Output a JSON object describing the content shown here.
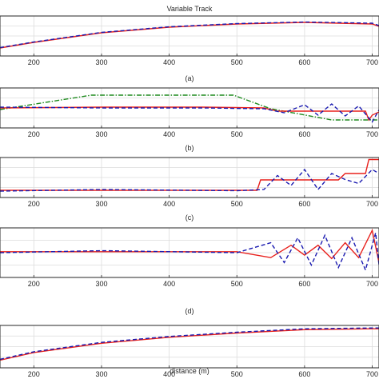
{
  "figure": {
    "title": "Variable Track",
    "xlabel": "distance (m)",
    "colors": {
      "red": "#e8201c",
      "blue": "#1a1ab0",
      "green": "#1f8a1f",
      "grid": "#dcdcdc",
      "axes": "#262626",
      "panel_bg": "#eeeeee"
    }
  },
  "chart_data": [
    {
      "type": "line",
      "caption": "(a)",
      "xlim": [
        150,
        710
      ],
      "ylim": [
        0,
        1
      ],
      "xticks": [
        200,
        300,
        400,
        500,
        600,
        700
      ],
      "xticklabels": [
        "200",
        "300",
        "400",
        "500",
        "600",
        "700"
      ],
      "grid": true,
      "series": [
        {
          "color": "#e8201c",
          "style": "solid",
          "x": [
            150,
            200,
            300,
            400,
            500,
            600,
            700,
            710
          ],
          "y": [
            0.2,
            0.34,
            0.58,
            0.72,
            0.8,
            0.84,
            0.8,
            0.74
          ]
        },
        {
          "color": "#1a1ab0",
          "style": "dashed",
          "x": [
            150,
            200,
            300,
            400,
            500,
            600,
            700,
            710
          ],
          "y": [
            0.21,
            0.35,
            0.59,
            0.73,
            0.81,
            0.85,
            0.82,
            0.76
          ]
        }
      ]
    },
    {
      "type": "line",
      "caption": "(b)",
      "xlim": [
        150,
        710
      ],
      "ylim": [
        0,
        1
      ],
      "xticks": [
        200,
        300,
        400,
        500,
        600,
        700
      ],
      "xticklabels": [
        "200",
        "300",
        "400",
        "500",
        "600",
        "700"
      ],
      "grid": true,
      "series": [
        {
          "color": "#1f8a1f",
          "style": "dashdot",
          "x": [
            150,
            285,
            495,
            550,
            640,
            710
          ],
          "y": [
            0.46,
            0.82,
            0.82,
            0.48,
            0.2,
            0.2
          ]
        },
        {
          "color": "#e8201c",
          "style": "solid",
          "x": [
            150,
            300,
            450,
            540,
            560,
            620,
            690,
            695,
            700,
            710
          ],
          "y": [
            0.5,
            0.52,
            0.52,
            0.5,
            0.42,
            0.42,
            0.42,
            0.2,
            0.32,
            0.4
          ]
        },
        {
          "color": "#1a1ab0",
          "style": "dashed",
          "x": [
            150,
            300,
            450,
            540,
            570,
            600,
            620,
            640,
            660,
            680,
            700,
            710
          ],
          "y": [
            0.52,
            0.5,
            0.5,
            0.48,
            0.38,
            0.58,
            0.32,
            0.6,
            0.3,
            0.55,
            0.15,
            0.45
          ]
        }
      ]
    },
    {
      "type": "line",
      "caption": "(c)",
      "xlim": [
        150,
        710
      ],
      "ylim": [
        0,
        1
      ],
      "xticks": [
        200,
        300,
        400,
        500,
        600,
        700
      ],
      "xticklabels": [
        "200",
        "300",
        "400",
        "500",
        "600",
        "700"
      ],
      "grid": true,
      "series": [
        {
          "color": "#e8201c",
          "style": "solid",
          "x": [
            150,
            300,
            500,
            530,
            535,
            600,
            650,
            660,
            690,
            695,
            710
          ],
          "y": [
            0.18,
            0.18,
            0.18,
            0.18,
            0.44,
            0.44,
            0.44,
            0.6,
            0.6,
            0.95,
            0.95
          ]
        },
        {
          "color": "#1a1ab0",
          "style": "dashed",
          "x": [
            150,
            300,
            500,
            540,
            560,
            580,
            600,
            620,
            640,
            660,
            680,
            700,
            710
          ],
          "y": [
            0.16,
            0.2,
            0.17,
            0.2,
            0.55,
            0.3,
            0.7,
            0.2,
            0.6,
            0.45,
            0.35,
            0.7,
            0.6
          ]
        }
      ]
    },
    {
      "type": "line",
      "caption": "(d)",
      "xlim": [
        150,
        710
      ],
      "ylim": [
        0,
        1
      ],
      "xticks": [
        200,
        300,
        400,
        500,
        600,
        700
      ],
      "xticklabels": [
        "200",
        "300",
        "400",
        "500",
        "600",
        "700"
      ],
      "grid": true,
      "series": [
        {
          "color": "#e8201c",
          "style": "solid",
          "x": [
            150,
            300,
            500,
            550,
            580,
            600,
            620,
            640,
            660,
            680,
            700,
            710
          ],
          "y": [
            0.52,
            0.52,
            0.52,
            0.4,
            0.65,
            0.45,
            0.65,
            0.38,
            0.7,
            0.4,
            0.95,
            0.3
          ]
        },
        {
          "color": "#1a1ab0",
          "style": "dashed",
          "x": [
            150,
            300,
            500,
            550,
            570,
            590,
            610,
            630,
            650,
            670,
            690,
            705,
            710
          ],
          "y": [
            0.5,
            0.54,
            0.5,
            0.7,
            0.3,
            0.8,
            0.25,
            0.85,
            0.2,
            0.8,
            0.15,
            0.9,
            0.25
          ]
        }
      ]
    },
    {
      "type": "line",
      "caption": "",
      "xlim": [
        150,
        710
      ],
      "ylim": [
        0,
        1
      ],
      "xticks": [
        200,
        300,
        400,
        500,
        600,
        700
      ],
      "xticklabels": [
        "200",
        "300",
        "400",
        "500",
        "600",
        "700"
      ],
      "grid": true,
      "series": [
        {
          "color": "#e8201c",
          "style": "solid",
          "x": [
            150,
            200,
            300,
            400,
            500,
            600,
            700,
            710
          ],
          "y": [
            0.18,
            0.36,
            0.58,
            0.72,
            0.82,
            0.9,
            0.92,
            0.92
          ]
        },
        {
          "color": "#1a1ab0",
          "style": "dashed",
          "x": [
            150,
            200,
            300,
            400,
            500,
            600,
            700,
            710
          ],
          "y": [
            0.2,
            0.38,
            0.6,
            0.74,
            0.84,
            0.92,
            0.94,
            0.94
          ]
        }
      ]
    }
  ]
}
